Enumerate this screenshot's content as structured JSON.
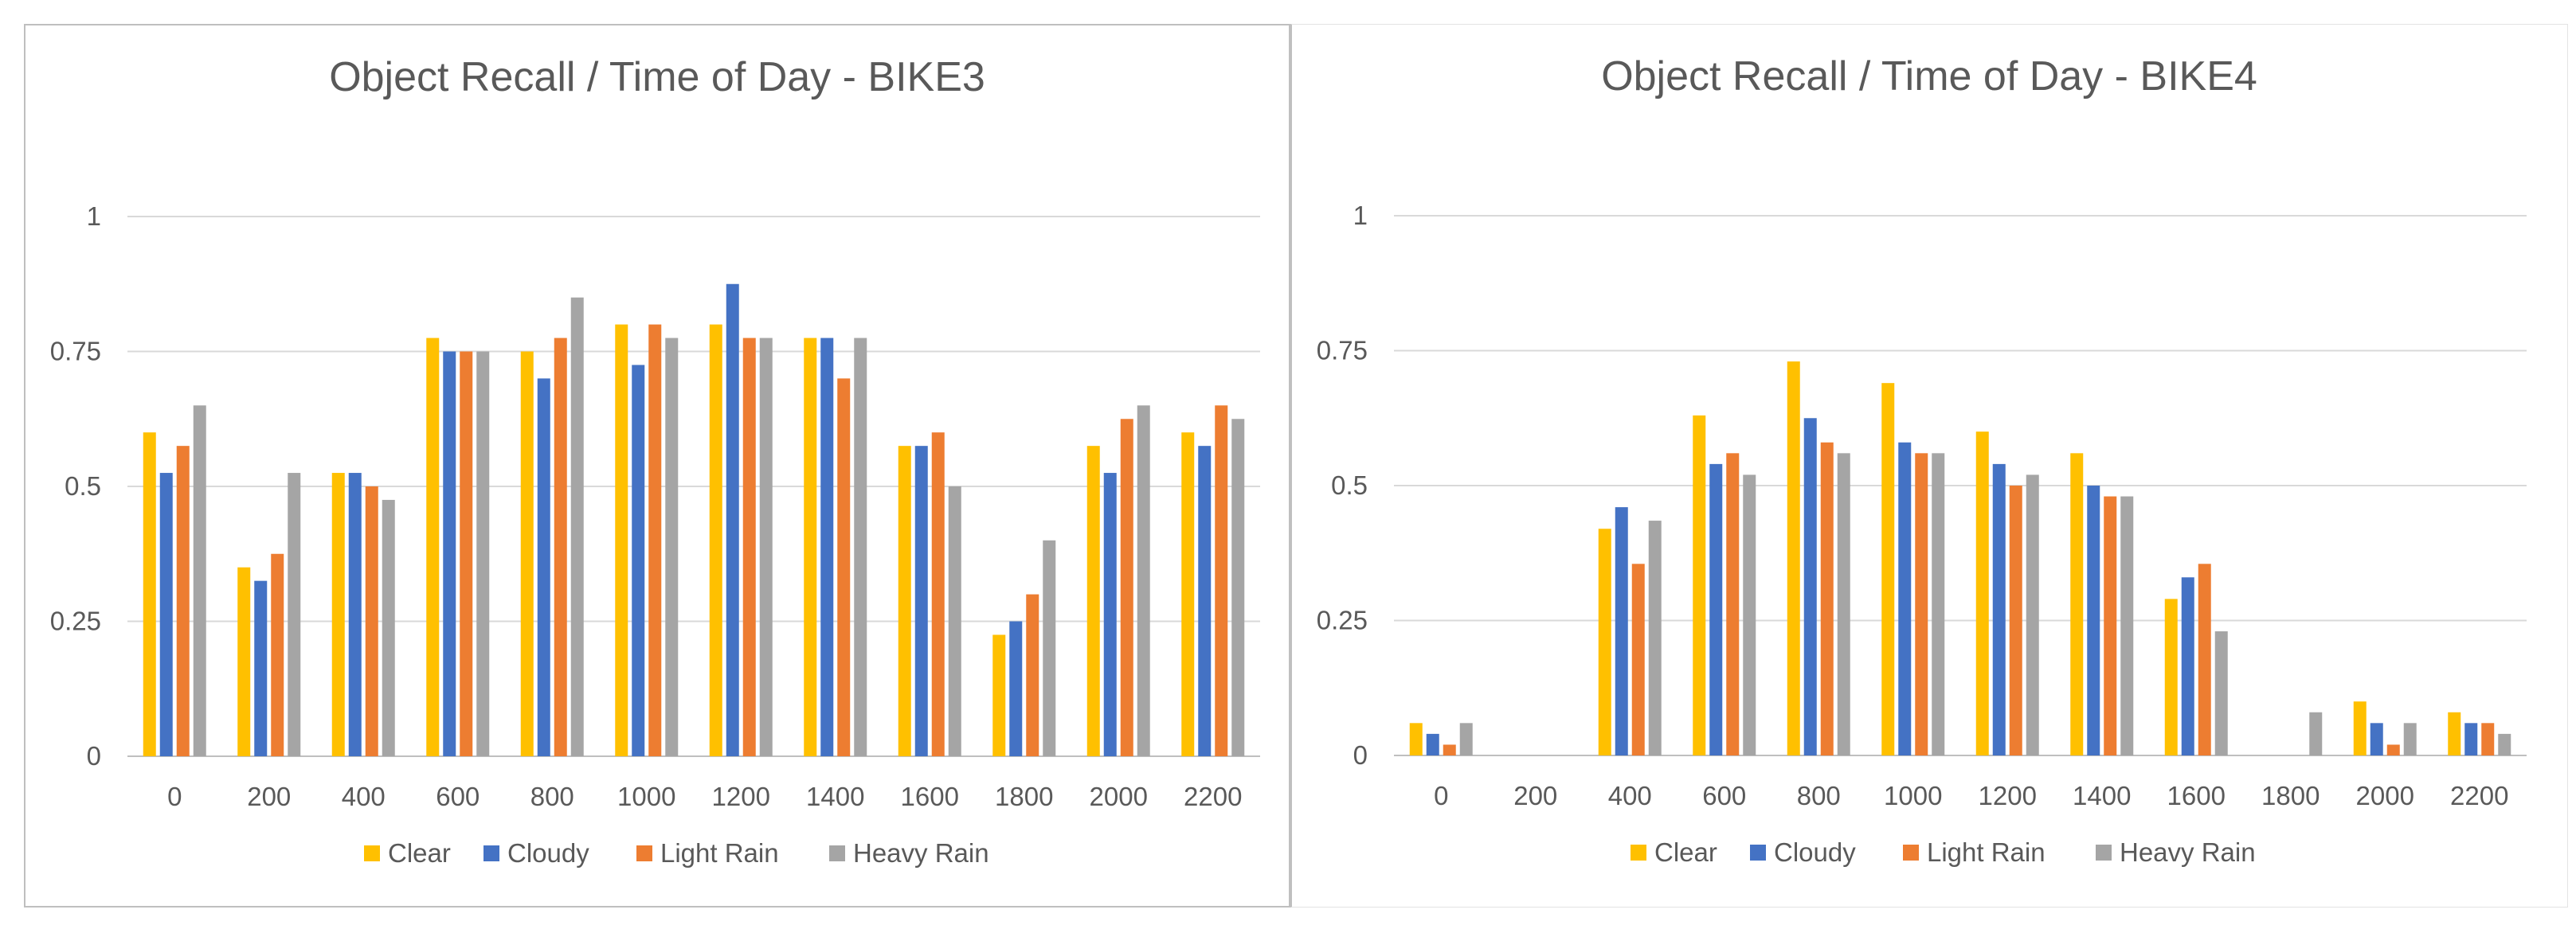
{
  "chart_data": [
    {
      "type": "bar",
      "title": "Object Recall / Time of Day - BIKE3",
      "xlabel": "",
      "ylabel": "",
      "ylim": [
        0,
        1
      ],
      "yticks": [
        "0",
        "0.25",
        "0.5",
        "0.75",
        "1"
      ],
      "ytick_values": [
        0,
        0.25,
        0.5,
        0.75,
        1
      ],
      "categories": [
        "0",
        "200",
        "400",
        "600",
        "800",
        "1000",
        "1200",
        "1400",
        "1600",
        "1800",
        "2000",
        "2200"
      ],
      "legend_position": "bottom",
      "grid": true,
      "series": [
        {
          "name": "Clear",
          "color": "#FFC000",
          "values": [
            0.6,
            0.35,
            0.525,
            0.775,
            0.75,
            0.8,
            0.8,
            0.775,
            0.575,
            0.225,
            0.575,
            0.6
          ]
        },
        {
          "name": "Cloudy",
          "color": "#4472C4",
          "values": [
            0.525,
            0.325,
            0.525,
            0.75,
            0.7,
            0.725,
            0.875,
            0.775,
            0.575,
            0.25,
            0.525,
            0.575
          ]
        },
        {
          "name": "Light Rain",
          "color": "#ED7D31",
          "values": [
            0.575,
            0.375,
            0.5,
            0.75,
            0.775,
            0.8,
            0.775,
            0.7,
            0.6,
            0.3,
            0.625,
            0.65
          ]
        },
        {
          "name": "Heavy Rain",
          "color": "#A5A5A5",
          "values": [
            0.65,
            0.525,
            0.475,
            0.75,
            0.85,
            0.775,
            0.775,
            0.775,
            0.5,
            0.4,
            0.65,
            0.625
          ]
        }
      ]
    },
    {
      "type": "bar",
      "title": "Object Recall / Time of Day - BIKE4",
      "xlabel": "",
      "ylabel": "",
      "ylim": [
        0,
        1
      ],
      "yticks": [
        "0",
        "0.25",
        "0.5",
        "0.75",
        "1"
      ],
      "ytick_values": [
        0,
        0.25,
        0.5,
        0.75,
        1
      ],
      "categories": [
        "0",
        "200",
        "400",
        "600",
        "800",
        "1000",
        "1200",
        "1400",
        "1600",
        "1800",
        "2000",
        "2200"
      ],
      "legend_position": "bottom",
      "grid": true,
      "series": [
        {
          "name": "Clear",
          "color": "#FFC000",
          "values": [
            0.06,
            0,
            0.42,
            0.63,
            0.73,
            0.69,
            0.6,
            0.56,
            0.29,
            0,
            0.1,
            0.08
          ]
        },
        {
          "name": "Cloudy",
          "color": "#4472C4",
          "values": [
            0.04,
            0,
            0.46,
            0.54,
            0.625,
            0.58,
            0.54,
            0.5,
            0.33,
            0,
            0.06,
            0.06
          ]
        },
        {
          "name": "Light Rain",
          "color": "#ED7D31",
          "values": [
            0.02,
            0,
            0.355,
            0.56,
            0.58,
            0.56,
            0.5,
            0.48,
            0.355,
            0,
            0.02,
            0.06
          ]
        },
        {
          "name": "Heavy Rain",
          "color": "#A5A5A5",
          "values": [
            0.06,
            0,
            0.435,
            0.52,
            0.56,
            0.56,
            0.52,
            0.48,
            0.23,
            0.08,
            0.06,
            0.04
          ]
        }
      ]
    }
  ]
}
